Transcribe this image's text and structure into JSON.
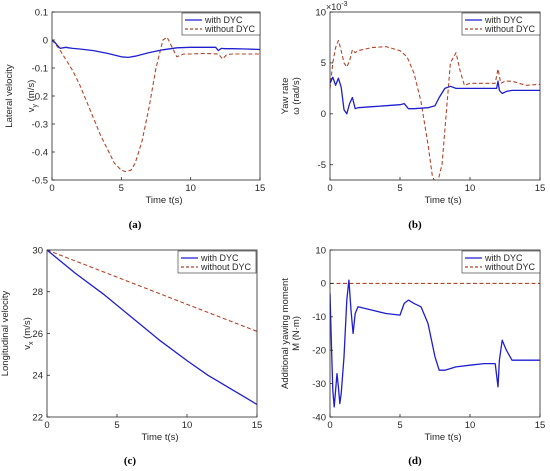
{
  "colors": {
    "with_dyc": "#1f1fd0",
    "without_dyc": "#b5452b",
    "axis": "#262626",
    "background": "#ffffff"
  },
  "chart_data": [
    {
      "type": "line",
      "caption": "(a)",
      "xlabel": "Time t(s)",
      "ylabel_lines": [
        "Lateral velocity",
        "v",
        "(m/s)"
      ],
      "ylabel_sub": "y",
      "xlim": [
        0,
        15
      ],
      "ylim": [
        -0.5,
        0.1
      ],
      "xticks": [
        0,
        5,
        10,
        15
      ],
      "yticks": [
        0.1,
        0,
        -0.1,
        -0.2,
        -0.3,
        -0.4,
        -0.5
      ],
      "ytick_labels": [
        "0.1",
        "0",
        "-0.1",
        "-0.2",
        "-0.3",
        "-0.4",
        "-0.5"
      ],
      "legend_position": "top-right",
      "series": [
        {
          "name": "with DYC",
          "style": "solid",
          "x": [
            0,
            0.2,
            0.4,
            0.6,
            0.8,
            1.0,
            1.2,
            1.5,
            2,
            3,
            4,
            5,
            5.5,
            6,
            7,
            8,
            9,
            10,
            11,
            11.8,
            12.0,
            12.2,
            12.5,
            13,
            14,
            15
          ],
          "y": [
            0,
            -0.008,
            -0.02,
            -0.03,
            -0.028,
            -0.026,
            -0.028,
            -0.03,
            -0.032,
            -0.038,
            -0.048,
            -0.06,
            -0.062,
            -0.058,
            -0.045,
            -0.035,
            -0.028,
            -0.026,
            -0.026,
            -0.026,
            -0.038,
            -0.03,
            -0.031,
            -0.031,
            -0.032,
            -0.034
          ]
        },
        {
          "name": "without DYC",
          "style": "dashed",
          "x": [
            0,
            0.5,
            1,
            1.5,
            2,
            2.5,
            3,
            3.5,
            4,
            4.5,
            5,
            5.3,
            5.7,
            6,
            6.5,
            7,
            7.5,
            8,
            8.3,
            8.6,
            9,
            9.5,
            10,
            11,
            12,
            12.3,
            12.6,
            13,
            14,
            15
          ],
          "y": [
            0,
            -0.03,
            -0.07,
            -0.11,
            -0.16,
            -0.22,
            -0.28,
            -0.34,
            -0.39,
            -0.44,
            -0.465,
            -0.47,
            -0.465,
            -0.44,
            -0.36,
            -0.24,
            -0.1,
            0.0,
            0.01,
            -0.02,
            -0.06,
            -0.05,
            -0.05,
            -0.048,
            -0.05,
            -0.068,
            -0.052,
            -0.05,
            -0.05,
            -0.05
          ]
        }
      ]
    },
    {
      "type": "line",
      "caption": "(b)",
      "xlabel": "Time t(s)",
      "ylabel_lines": [
        "Yaw rate",
        "ω (rad/s)"
      ],
      "exponent_label": "×10",
      "exponent": "-3",
      "xlim": [
        0,
        15
      ],
      "ylim": [
        -6.5,
        10
      ],
      "xticks": [
        0,
        5,
        10,
        15
      ],
      "yticks": [
        -5,
        0,
        5,
        10
      ],
      "ytick_labels": [
        "-5",
        "0",
        "5",
        "10"
      ],
      "legend_position": "top-right",
      "series": [
        {
          "name": "with DYC",
          "style": "solid",
          "x": [
            0,
            0.2,
            0.4,
            0.6,
            0.8,
            1.0,
            1.2,
            1.4,
            1.6,
            1.8,
            2,
            3,
            4,
            5,
            5.3,
            5.6,
            6,
            7,
            7.5,
            7.8,
            8.2,
            8.6,
            9,
            10,
            11,
            11.9,
            12.0,
            12.1,
            12.3,
            12.6,
            13,
            14,
            15
          ],
          "y": [
            3.0,
            3.6,
            2.8,
            3.5,
            2.6,
            0.4,
            0.0,
            1.0,
            1.6,
            0.5,
            0.6,
            0.7,
            0.8,
            0.9,
            1.0,
            0.5,
            0.5,
            0.6,
            0.8,
            1.6,
            2.5,
            2.7,
            2.5,
            2.5,
            2.5,
            2.5,
            3.2,
            2.3,
            2.0,
            2.2,
            2.3,
            2.3,
            2.3
          ]
        },
        {
          "name": "without DYC",
          "style": "dashed",
          "x": [
            0,
            0.2,
            0.4,
            0.6,
            0.8,
            1.0,
            1.2,
            1.4,
            1.6,
            1.8,
            2,
            3,
            4,
            5,
            5.5,
            6,
            6.5,
            7,
            7.3,
            7.6,
            8,
            8.3,
            8.6,
            9,
            9.3,
            9.6,
            10,
            11,
            11.8,
            12.0,
            12.2,
            12.5,
            13,
            14,
            15
          ],
          "y": [
            2.5,
            5.0,
            6.5,
            7.2,
            6.2,
            5.0,
            4.6,
            5.2,
            6.3,
            6.0,
            6.2,
            6.5,
            6.6,
            6.2,
            5.6,
            4.0,
            1.2,
            -3.0,
            -6.0,
            -7.2,
            -5.0,
            0.0,
            5.0,
            6.0,
            4.2,
            2.8,
            3.0,
            3.0,
            3.0,
            4.4,
            3.0,
            3.2,
            3.2,
            2.8,
            2.9
          ]
        }
      ]
    },
    {
      "type": "line",
      "caption": "(c)",
      "xlabel": "Time t(s)",
      "ylabel_lines": [
        "Longitudinal velocity",
        "v",
        "(m/s)"
      ],
      "ylabel_sub": "x",
      "xlim": [
        0,
        15
      ],
      "ylim": [
        22,
        30
      ],
      "xticks": [
        0,
        5,
        10,
        15
      ],
      "yticks": [
        22,
        24,
        26,
        28,
        30
      ],
      "ytick_labels": [
        "22",
        "24",
        "26",
        "28",
        "30"
      ],
      "legend_position": "top-right",
      "series": [
        {
          "name": "with DYC",
          "style": "solid",
          "x": [
            0,
            2,
            4,
            6,
            8,
            10,
            11.5,
            12,
            13,
            14,
            15
          ],
          "y": [
            30,
            28.9,
            27.9,
            26.8,
            25.7,
            24.7,
            24.0,
            23.8,
            23.4,
            23.0,
            22.6
          ]
        },
        {
          "name": "without DYC",
          "style": "dashed",
          "x": [
            0,
            5,
            10,
            15
          ],
          "y": [
            30,
            28.7,
            27.4,
            26.1
          ]
        }
      ]
    },
    {
      "type": "line",
      "caption": "(d)",
      "xlabel": "Time t(s)",
      "ylabel_lines": [
        "Additional yawing moment",
        "M (N·m)"
      ],
      "xlim": [
        0,
        15
      ],
      "ylim": [
        -40,
        10
      ],
      "xticks": [
        0,
        5,
        10,
        15
      ],
      "yticks": [
        10,
        0,
        -10,
        -20,
        -30,
        -40
      ],
      "ytick_labels": [
        "10",
        "0",
        "-10",
        "-20",
        "-30",
        "-40"
      ],
      "legend_position": "top-right",
      "series": [
        {
          "name": "with DYC",
          "style": "solid",
          "x": [
            0,
            0.1,
            0.2,
            0.3,
            0.4,
            0.5,
            0.6,
            0.7,
            0.8,
            1.0,
            1.2,
            1.35,
            1.5,
            1.65,
            1.8,
            2,
            3,
            4,
            5,
            5.3,
            5.6,
            6,
            6.5,
            7,
            7.5,
            7.8,
            8.2,
            9,
            10,
            11,
            11.8,
            12.0,
            12.1,
            12.3,
            12.6,
            13,
            14,
            15
          ],
          "y": [
            -3,
            -18,
            -32,
            -37,
            -32,
            -27,
            -31,
            -36,
            -33,
            -22,
            -5,
            1,
            -8,
            -15,
            -9,
            -7,
            -8,
            -9,
            -9.5,
            -6,
            -5,
            -6,
            -7,
            -12,
            -22,
            -26,
            -26,
            -25,
            -24.5,
            -24,
            -24,
            -31,
            -23,
            -17,
            -20,
            -23,
            -23,
            -23
          ]
        },
        {
          "name": "without DYC",
          "style": "dashed",
          "x": [
            0,
            15
          ],
          "y": [
            0,
            0
          ]
        }
      ]
    }
  ]
}
